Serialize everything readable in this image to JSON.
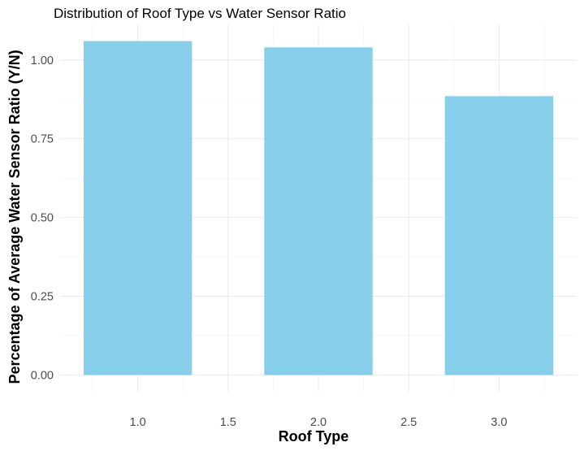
{
  "chart_data": {
    "type": "bar",
    "title": "Distribution of Roof Type vs Water Sensor Ratio",
    "xlabel": "Roof Type",
    "ylabel": "Percentage of Average Water Sensor Ratio (Y/N)",
    "x": [
      1.0,
      2.0,
      3.0
    ],
    "values": [
      1.06,
      1.04,
      0.885
    ],
    "bar_width": 0.6,
    "xlim": [
      0.7,
      3.3
    ],
    "ylim": [
      0,
      1.06
    ],
    "xticks": [
      1.0,
      1.5,
      2.0,
      2.5,
      3.0
    ],
    "xtick_labels": [
      "1.0",
      "1.5",
      "2.0",
      "2.5",
      "3.0"
    ],
    "yticks": [
      0,
      0.25,
      0.5,
      0.75,
      1.0
    ],
    "ytick_labels": [
      "0.00",
      "0.25",
      "0.50",
      "0.75",
      "1.00"
    ],
    "grid": true,
    "legend": "none",
    "colors": {
      "bar": "#87ceeb",
      "grid_major": "#ebebeb",
      "grid_minor": "#f3f3f3",
      "tick_text": "#4d4d4d"
    }
  }
}
